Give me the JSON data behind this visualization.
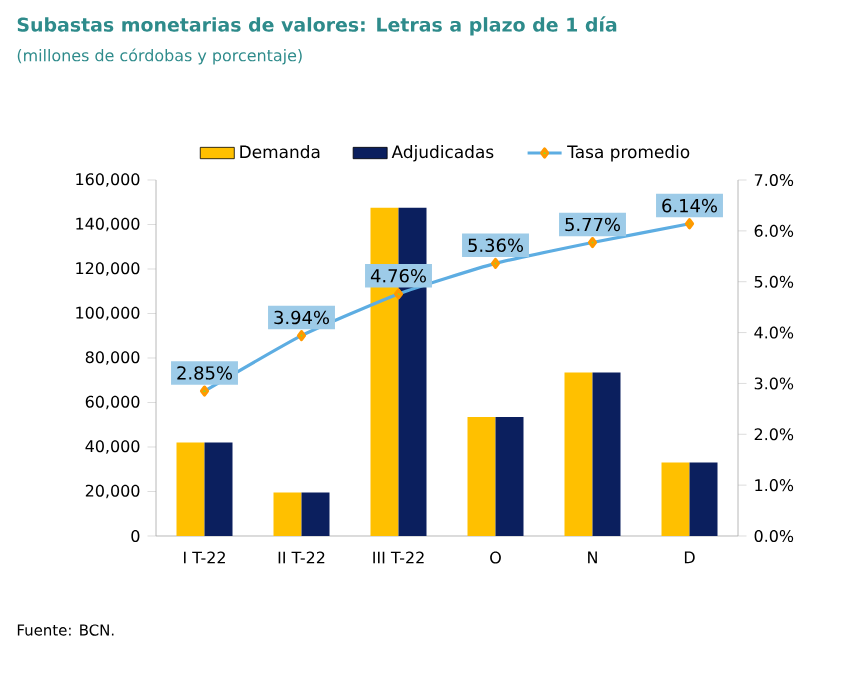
{
  "chart_data": {
    "type": "bar",
    "title": "Subastas monetarias de valores: Letras a plazo de 1 día",
    "subtitle": "(millones de córdobas y porcentaje)",
    "categories": [
      "I T-22",
      "II T-22",
      "III T-22",
      "O",
      "N",
      "D"
    ],
    "series": [
      {
        "name": "Demanda",
        "color": "#FFC000",
        "values": [
          42000,
          19500,
          147500,
          53500,
          73500,
          33000
        ]
      },
      {
        "name": "Adjudicadas",
        "color": "#0B1F5E",
        "values": [
          42000,
          19500,
          147500,
          53500,
          73500,
          33000
        ]
      },
      {
        "name": "Tasa promedio",
        "type": "line",
        "axis": "y2",
        "color": "#5DADE2",
        "marker": "diamond",
        "values": [
          2.85,
          3.94,
          4.76,
          5.36,
          5.77,
          6.14
        ],
        "value_labels": [
          "2.85%",
          "3.94%",
          "4.76%",
          "5.36%",
          "5.77%",
          "6.14%"
        ]
      }
    ],
    "ylim": [
      0,
      160000
    ],
    "yticks": [
      0,
      {
        "value": 20000,
        "label": "20,000"
      },
      {
        "value": 40000,
        "label": "40,000"
      },
      {
        "value": 60000,
        "label": "60,000"
      },
      {
        "value": 80000,
        "label": "80,000"
      },
      {
        "value": 100000,
        "label": "100,000"
      },
      {
        "value": 120000,
        "label": "120,000"
      },
      {
        "value": 140000,
        "label": "140,000"
      },
      {
        "value": 160000,
        "label": "160,000"
      }
    ],
    "y2lim": [
      0,
      7
    ],
    "y2ticks": [
      {
        "value": 0,
        "label": "0.0%"
      },
      {
        "value": 1,
        "label": "1.0%"
      },
      {
        "value": 2,
        "label": "2.0%"
      },
      {
        "value": 3,
        "label": "3.0%"
      },
      {
        "value": 4,
        "label": "4.0%"
      },
      {
        "value": 5,
        "label": "5.0%"
      },
      {
        "value": 6,
        "label": "6.0%"
      },
      {
        "value": 7,
        "label": "7.0%"
      }
    ],
    "legend": "top",
    "annotations": [
      "Fuente: BCN."
    ]
  }
}
